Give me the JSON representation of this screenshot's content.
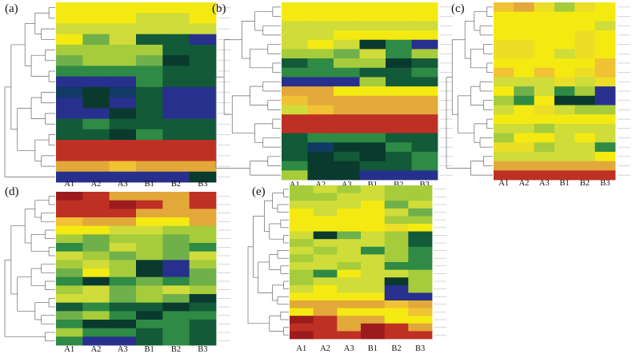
{
  "figure": {
    "title": ""
  },
  "colors": {
    "Y": "#f4ea12",
    "y": "#ecde26",
    "L": "#cfdc3a",
    "G": "#a6cc3c",
    "g": "#6fb04a",
    "D": "#2e8a44",
    "d": "#125a38",
    "N": "#0a3a2e",
    "T": "#123a66",
    "B": "#28308e",
    "O": "#e3a83a",
    "o": "#f0c234",
    "R": "#bf3024",
    "r": "#9c1c1e"
  },
  "chart_data": [
    {
      "type": "heatmap",
      "panel_label": "(a)",
      "columns": [
        "A1",
        "A2",
        "A3",
        "B1",
        "B2",
        "B3"
      ],
      "rows": [
        "YYYYYY",
        "YYYLLY",
        "LLLLLL",
        "YgLddB",
        "GGGGdd",
        "gGGgNd",
        "DDDDdd",
        "BBBDdd",
        "TNTdBB",
        "BNBdBB",
        "BBNdBB",
        "dDdddd",
        "ddNDdd",
        "RRRRRR",
        "RRRRRR",
        "OOoOOO",
        "BBBBBN"
      ]
    },
    {
      "type": "heatmap",
      "panel_label": "(b)",
      "columns": [
        "A1",
        "A2",
        "A3",
        "B1",
        "B2",
        "B3"
      ],
      "rows": [
        "YYYYYY",
        "YYYYYY",
        "LLLLLL",
        "LLYYYY",
        "LYLNDB",
        "GGgLDG",
        "dDGGNd",
        "DDDddD",
        "BBBGdd",
        "OOYYYY",
        "oOOOOO",
        "LoOOOO",
        "RRRRRR",
        "RRRRRR",
        "dDDDdd",
        "dTNNDd",
        "dNdNdD",
        "DNNddD",
        "GNNBBB"
      ]
    },
    {
      "type": "heatmap",
      "panel_label": "(c)",
      "columns": [
        "A1",
        "A2",
        "A3",
        "B1",
        "B2",
        "B3"
      ],
      "rows": [
        "oOyGyY",
        "YYYYYY",
        "YYYYYL",
        "YYYYyY",
        "yyYYyY",
        "yyYLyY",
        "YYYYYo",
        "oYoYyo",
        "LLLyLy",
        "YgLDGB",
        "GDYNNB",
        "LYyLGG",
        "YYYYYY",
        "LLGLLL",
        "GYYLYL",
        "yyGLLD",
        "LLLLLY",
        "OOOOOO",
        "RRRRRR"
      ]
    },
    {
      "type": "heatmap",
      "panel_label": "(d)",
      "columns": [
        "A1",
        "A2",
        "A3",
        "B1",
        "B2",
        "B3"
      ],
      "rows": [
        "rROOOR",
        "RRrROR",
        "RRROOO",
        "oOOYYO",
        "YYLLGG",
        "GgGGgG",
        "DgLGgD",
        "LGgGgL",
        "GLGNBG",
        "gYGNBg",
        "DNDgDg",
        "GLgGLG",
        "LLgGgN",
        "dDddNd",
        "gGDNDD",
        "DNNDDd",
        "GDDdDd",
        "DBBdDd"
      ]
    },
    {
      "type": "heatmap",
      "panel_label": "(e)",
      "columns": [
        "A1",
        "A2",
        "A3",
        "B1",
        "B2",
        "B3"
      ],
      "rows": [
        "GLGLGG",
        "GGLLGG",
        "LLLYgL",
        "YLYYLg",
        "YYYYGG",
        "YYYYyY",
        "LNgLGd",
        "GLLLGd",
        "LGLDGD",
        "GLLLGD",
        "LLGLDD",
        "GDYLLG",
        "GLLLNG",
        "LYLLBG",
        "YYYYBB",
        "OOOOoO",
        "YOYYYo",
        "rROOYY",
        "RROrRO",
        "rRRrRR"
      ]
    }
  ]
}
